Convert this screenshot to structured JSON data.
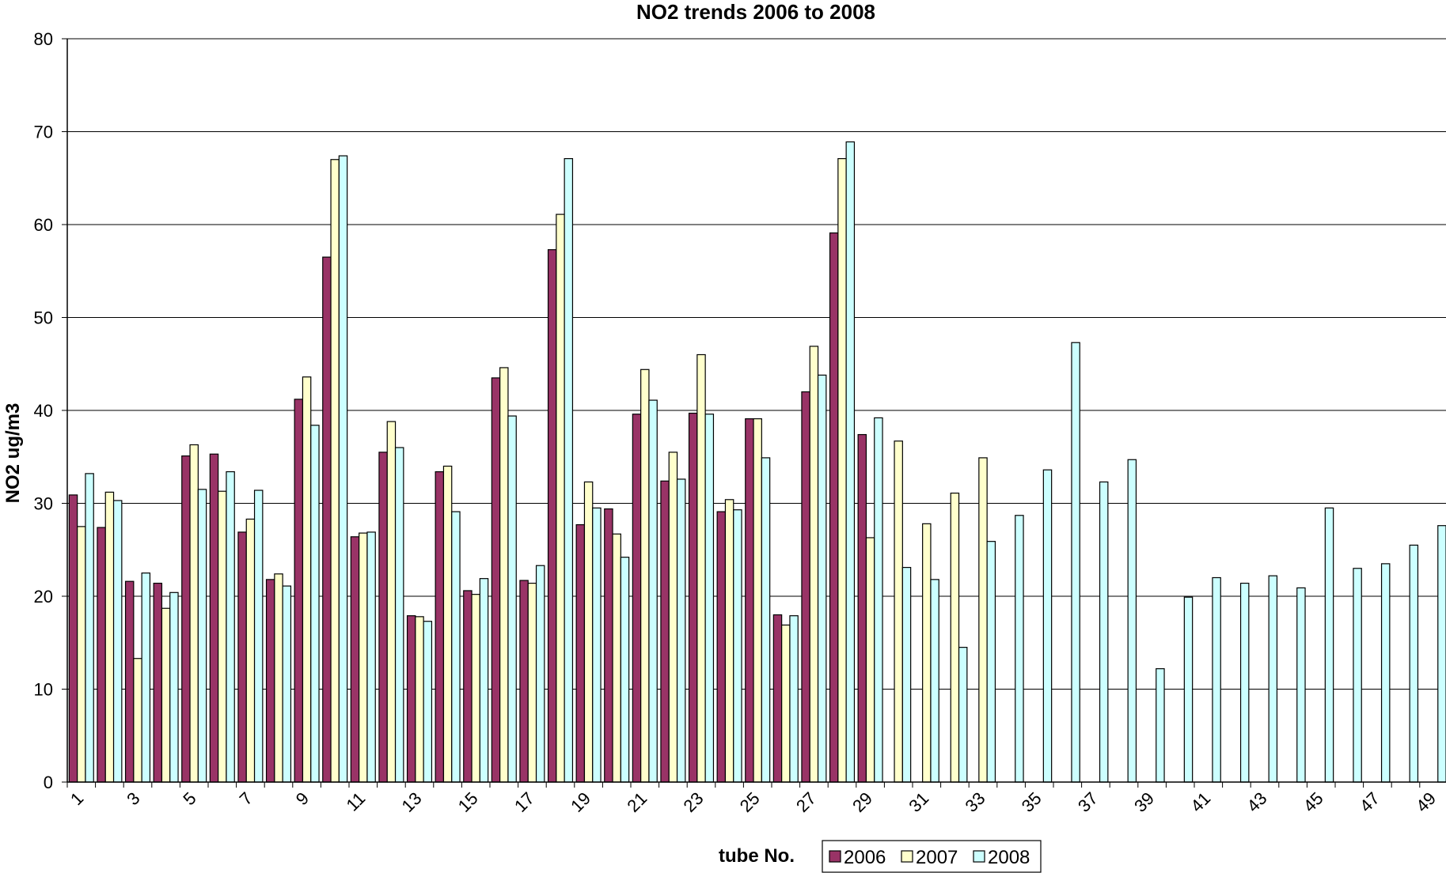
{
  "chart_data": {
    "type": "bar",
    "title": "NO2 trends 2006 to 2008",
    "xlabel": "tube No.",
    "ylabel": "NO2 ug/m3",
    "ylim": [
      0,
      80
    ],
    "yticks": [
      "0",
      "10",
      "20",
      "30",
      "40",
      "50",
      "60",
      "70",
      "80"
    ],
    "grid": true,
    "legend_position": "bottom",
    "categories": [
      "1",
      "2",
      "3",
      "4",
      "5",
      "6",
      "7",
      "8",
      "9",
      "10",
      "11",
      "12",
      "13",
      "14",
      "15",
      "16",
      "17",
      "18",
      "19",
      "20",
      "21",
      "22",
      "23",
      "24",
      "25",
      "26",
      "27",
      "28",
      "29",
      "30",
      "31",
      "32",
      "33",
      "34",
      "35",
      "36",
      "37",
      "38",
      "39",
      "40",
      "41",
      "42",
      "43",
      "44",
      "45",
      "46",
      "47",
      "48",
      "49",
      "50"
    ],
    "xtick_labels": [
      "1",
      "3",
      "5",
      "7",
      "9",
      "11",
      "13",
      "15",
      "17",
      "19",
      "21",
      "23",
      "25",
      "27",
      "29",
      "31",
      "33",
      "35",
      "37",
      "39",
      "41",
      "43",
      "45",
      "47",
      "49"
    ],
    "series": [
      {
        "name": "2006",
        "color": "#993366",
        "values": [
          30.9,
          27.4,
          21.6,
          21.4,
          35.1,
          35.3,
          26.9,
          21.8,
          41.2,
          56.5,
          26.4,
          35.5,
          17.9,
          33.4,
          20.6,
          43.5,
          21.7,
          57.3,
          27.7,
          29.4,
          39.6,
          32.4,
          39.7,
          29.1,
          39.1,
          18.0,
          42.0,
          59.1,
          37.4,
          null,
          null,
          null,
          null,
          null,
          null,
          null,
          null,
          null,
          null,
          null,
          null,
          null,
          null,
          null,
          null,
          null,
          null,
          null,
          null,
          null
        ]
      },
      {
        "name": "2007",
        "color": "#ffffcc",
        "values": [
          27.5,
          31.2,
          13.3,
          18.7,
          36.3,
          31.3,
          28.3,
          22.4,
          43.6,
          67.0,
          26.8,
          38.8,
          17.8,
          34.0,
          20.2,
          44.6,
          21.4,
          61.1,
          32.3,
          26.7,
          44.4,
          35.5,
          46.0,
          30.4,
          39.1,
          16.9,
          46.9,
          67.1,
          26.3,
          36.7,
          27.8,
          31.1,
          34.9,
          null,
          null,
          null,
          null,
          null,
          null,
          null,
          null,
          null,
          null,
          null,
          null,
          null,
          null,
          null,
          null,
          null
        ]
      },
      {
        "name": "2008",
        "color": "#ccffff",
        "values": [
          33.2,
          30.3,
          22.5,
          20.4,
          31.5,
          33.4,
          31.4,
          21.1,
          38.4,
          67.4,
          26.9,
          36.0,
          17.3,
          29.1,
          21.9,
          39.4,
          23.3,
          67.1,
          29.5,
          24.2,
          41.1,
          32.6,
          39.6,
          29.3,
          34.9,
          17.9,
          43.8,
          68.9,
          39.2,
          23.1,
          21.8,
          14.5,
          25.9,
          28.7,
          33.6,
          47.3,
          32.3,
          34.7,
          12.2,
          19.9,
          22.0,
          21.4,
          22.2,
          20.9,
          29.5,
          23.0,
          23.5,
          25.5,
          27.6,
          null
        ]
      }
    ]
  }
}
